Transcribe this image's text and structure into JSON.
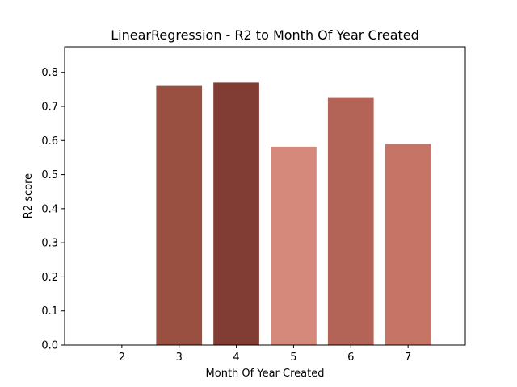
{
  "chart_data": {
    "type": "bar",
    "title": "LinearRegression - R2 to Month Of Year Created",
    "xlabel": "Month Of Year Created",
    "ylabel": "R2 score",
    "categories": [
      "2",
      "3",
      "4",
      "5",
      "6",
      "7"
    ],
    "values": [
      0.0,
      0.76,
      0.77,
      0.582,
      0.727,
      0.59
    ],
    "colors": [
      "#9a5040",
      "#9a5040",
      "#813c33",
      "#d5897b",
      "#b36457",
      "#c57466"
    ],
    "yticks": [
      "0.0",
      "0.1",
      "0.2",
      "0.3",
      "0.4",
      "0.5",
      "0.6",
      "0.7",
      "0.8"
    ],
    "ylim": [
      0,
      0.875
    ],
    "xlim": [
      1,
      8
    ],
    "grid": false,
    "legend": "none"
  }
}
